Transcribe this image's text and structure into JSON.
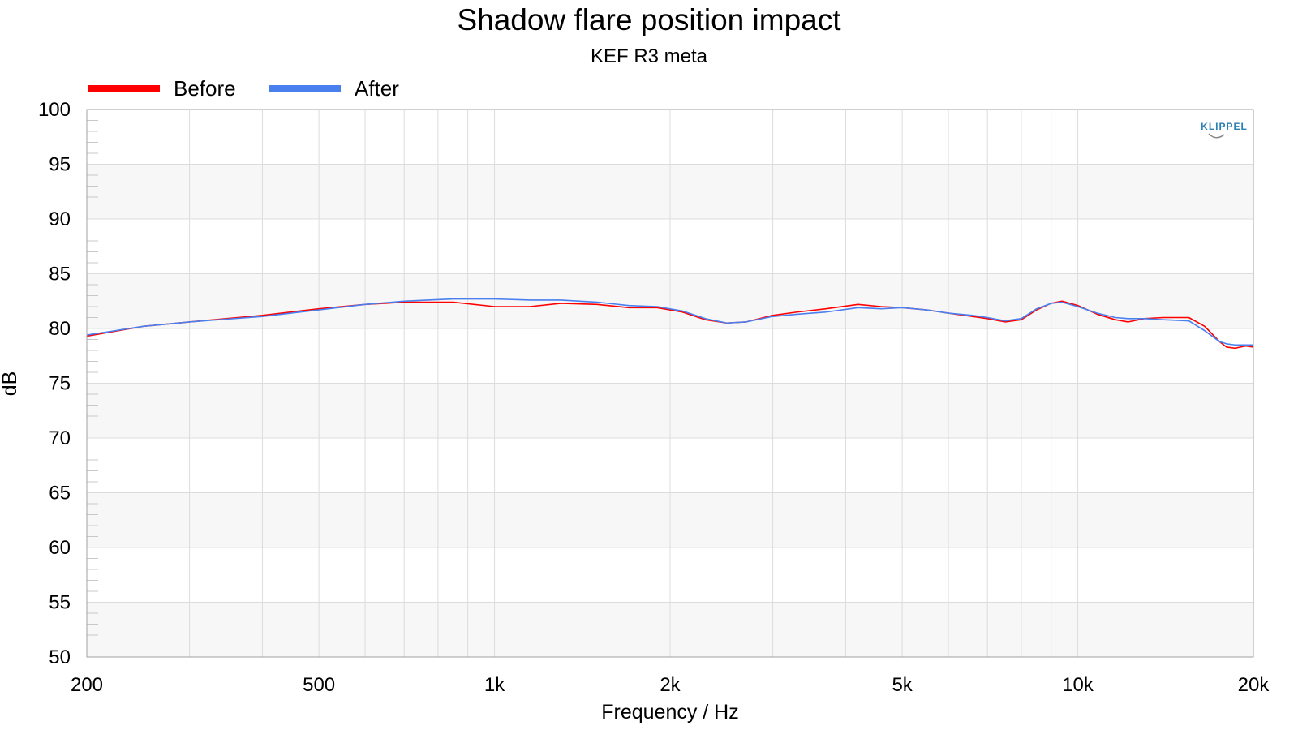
{
  "chart_data": {
    "type": "line",
    "title": "Shadow flare position impact",
    "subtitle": "KEF R3 meta",
    "xlabel": "Frequency / Hz",
    "ylabel": "dB",
    "x_scale": "log",
    "xlim": [
      200,
      20000
    ],
    "ylim": [
      50,
      100
    ],
    "grid": true,
    "legend_position": "top-left",
    "logo": "KLIPPEL",
    "x_ticks": [
      {
        "value": 200,
        "label": "200"
      },
      {
        "value": 500,
        "label": "500"
      },
      {
        "value": 1000,
        "label": "1k"
      },
      {
        "value": 2000,
        "label": "2k"
      },
      {
        "value": 5000,
        "label": "5k"
      },
      {
        "value": 10000,
        "label": "10k"
      },
      {
        "value": 20000,
        "label": "20k"
      }
    ],
    "y_ticks": [
      {
        "value": 100,
        "label": "100"
      },
      {
        "value": 95,
        "label": "95"
      },
      {
        "value": 90,
        "label": "90"
      },
      {
        "value": 85,
        "label": "85"
      },
      {
        "value": 80,
        "label": "80"
      },
      {
        "value": 75,
        "label": "75"
      },
      {
        "value": 70,
        "label": "70"
      },
      {
        "value": 65,
        "label": "65"
      },
      {
        "value": 60,
        "label": "60"
      },
      {
        "value": 55,
        "label": "55"
      },
      {
        "value": 50,
        "label": "50"
      }
    ],
    "series": [
      {
        "name": "Before",
        "color": "#ff0000",
        "points": [
          [
            200,
            79.3
          ],
          [
            250,
            80.2
          ],
          [
            300,
            80.6
          ],
          [
            400,
            81.2
          ],
          [
            500,
            81.8
          ],
          [
            600,
            82.2
          ],
          [
            700,
            82.4
          ],
          [
            850,
            82.4
          ],
          [
            1000,
            82.0
          ],
          [
            1150,
            82.0
          ],
          [
            1300,
            82.3
          ],
          [
            1500,
            82.2
          ],
          [
            1700,
            81.9
          ],
          [
            1900,
            81.9
          ],
          [
            2100,
            81.5
          ],
          [
            2300,
            80.8
          ],
          [
            2500,
            80.5
          ],
          [
            2700,
            80.6
          ],
          [
            3000,
            81.2
          ],
          [
            3300,
            81.5
          ],
          [
            3700,
            81.8
          ],
          [
            4200,
            82.2
          ],
          [
            4600,
            82.0
          ],
          [
            5000,
            81.9
          ],
          [
            5500,
            81.7
          ],
          [
            6000,
            81.4
          ],
          [
            6600,
            81.1
          ],
          [
            7000,
            80.9
          ],
          [
            7500,
            80.6
          ],
          [
            8000,
            80.8
          ],
          [
            8500,
            81.7
          ],
          [
            9000,
            82.3
          ],
          [
            9400,
            82.5
          ],
          [
            10000,
            82.1
          ],
          [
            10800,
            81.3
          ],
          [
            11600,
            80.8
          ],
          [
            12200,
            80.6
          ],
          [
            13000,
            80.9
          ],
          [
            14000,
            81.0
          ],
          [
            15500,
            81.0
          ],
          [
            16500,
            80.2
          ],
          [
            17500,
            78.8
          ],
          [
            18000,
            78.3
          ],
          [
            18600,
            78.2
          ],
          [
            19400,
            78.4
          ],
          [
            20000,
            78.3
          ]
        ]
      },
      {
        "name": "After",
        "color": "#4a7ff0",
        "points": [
          [
            200,
            79.4
          ],
          [
            250,
            80.2
          ],
          [
            300,
            80.6
          ],
          [
            400,
            81.1
          ],
          [
            500,
            81.7
          ],
          [
            600,
            82.2
          ],
          [
            700,
            82.5
          ],
          [
            850,
            82.7
          ],
          [
            1000,
            82.7
          ],
          [
            1150,
            82.6
          ],
          [
            1300,
            82.6
          ],
          [
            1500,
            82.4
          ],
          [
            1700,
            82.1
          ],
          [
            1900,
            82.0
          ],
          [
            2100,
            81.6
          ],
          [
            2300,
            80.9
          ],
          [
            2500,
            80.5
          ],
          [
            2700,
            80.6
          ],
          [
            3000,
            81.1
          ],
          [
            3300,
            81.3
          ],
          [
            3700,
            81.5
          ],
          [
            4200,
            81.9
          ],
          [
            4600,
            81.8
          ],
          [
            5000,
            81.9
          ],
          [
            5500,
            81.7
          ],
          [
            6000,
            81.4
          ],
          [
            6600,
            81.2
          ],
          [
            7000,
            81.0
          ],
          [
            7500,
            80.7
          ],
          [
            8000,
            80.9
          ],
          [
            8500,
            81.8
          ],
          [
            9000,
            82.3
          ],
          [
            9400,
            82.4
          ],
          [
            10000,
            82.0
          ],
          [
            10800,
            81.4
          ],
          [
            11600,
            81.0
          ],
          [
            12200,
            80.9
          ],
          [
            13000,
            80.9
          ],
          [
            14000,
            80.8
          ],
          [
            15500,
            80.7
          ],
          [
            16500,
            79.8
          ],
          [
            17500,
            78.8
          ],
          [
            18000,
            78.6
          ],
          [
            18600,
            78.5
          ],
          [
            19400,
            78.5
          ],
          [
            20000,
            78.5
          ]
        ]
      }
    ]
  }
}
